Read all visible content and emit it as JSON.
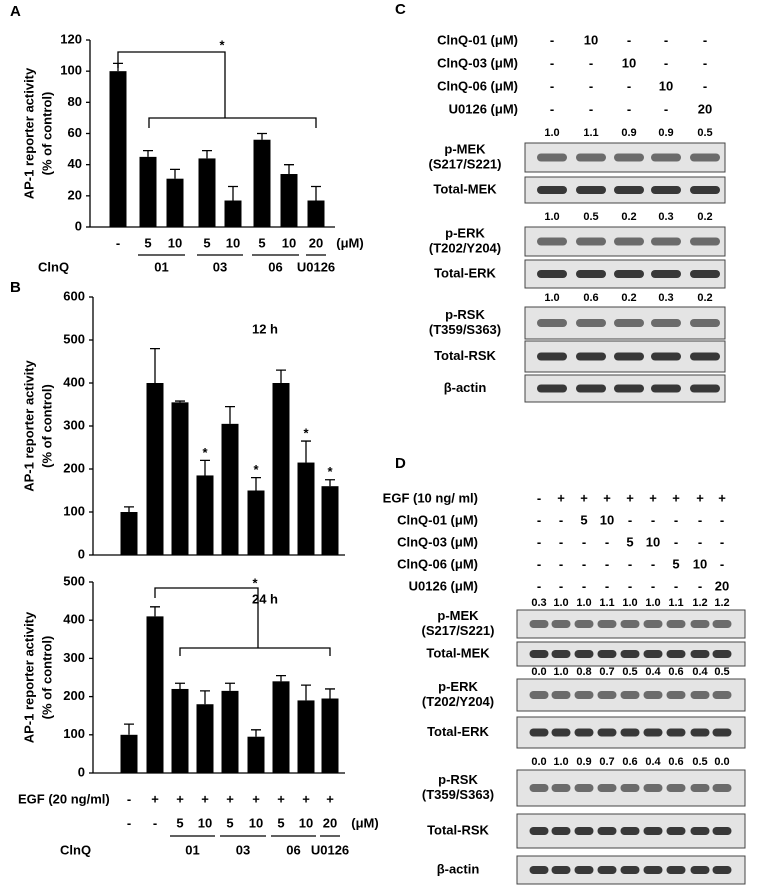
{
  "chart_data": [
    {
      "type": "bar",
      "panel": "A",
      "ylabel": [
        "AP-1 reporter activity",
        "(% of control)"
      ],
      "categories": [
        "-",
        "5",
        "10",
        "5",
        "10",
        "5",
        "10",
        "20"
      ],
      "groups": [
        null,
        "01",
        "01",
        "03",
        "03",
        "06",
        "06",
        "U0126"
      ],
      "group_title": "ClnQ",
      "unit": "(μM)",
      "values": [
        100,
        45,
        31,
        44,
        17,
        56,
        34,
        17
      ],
      "errors": [
        5,
        4,
        6,
        5,
        9,
        4,
        6,
        9
      ],
      "color": "#000000",
      "ylim": [
        0,
        120
      ],
      "yticks": [
        0,
        20,
        40,
        60,
        80,
        100,
        120
      ],
      "significance": "*"
    },
    {
      "type": "bar",
      "panel": "B",
      "note": "12 h",
      "ylabel": [
        "AP-1 reporter activity",
        "(% of control)"
      ],
      "values": [
        100,
        400,
        355,
        185,
        305,
        150,
        400,
        215,
        160
      ],
      "errors": [
        12,
        80,
        3,
        35,
        40,
        30,
        30,
        50,
        15
      ],
      "stars": [
        null,
        null,
        null,
        "*",
        null,
        "*",
        null,
        "*",
        "*"
      ],
      "color": "#000000",
      "ylim": [
        0,
        600
      ],
      "yticks": [
        0,
        100,
        200,
        300,
        400,
        500,
        600
      ]
    },
    {
      "type": "bar",
      "note": "24 h",
      "ylabel": [
        "AP-1 reporter activity",
        "(% of control)"
      ],
      "egf": {
        "label": "EGF (20 ng/ml)",
        "values": [
          "-",
          "+",
          "+",
          "+",
          "+",
          "+",
          "+",
          "+",
          "+"
        ]
      },
      "categories": [
        "-",
        "-",
        "5",
        "10",
        "5",
        "10",
        "5",
        "10",
        "20"
      ],
      "groups": [
        null,
        null,
        "01",
        "01",
        "03",
        "03",
        "06",
        "06",
        "U0126"
      ],
      "group_title": "ClnQ",
      "unit": "(μM)",
      "values": [
        100,
        410,
        220,
        180,
        215,
        95,
        240,
        190,
        195
      ],
      "errors": [
        28,
        25,
        15,
        35,
        20,
        18,
        15,
        40,
        25
      ],
      "color": "#000000",
      "ylim": [
        0,
        500
      ],
      "yticks": [
        0,
        100,
        200,
        300,
        400,
        500
      ],
      "significance": "*"
    }
  ],
  "blots": [
    {
      "panel": "C",
      "treatments": [
        {
          "label": "ClnQ-01  (μM)",
          "values": [
            "-",
            "10",
            "-",
            "-",
            "-"
          ]
        },
        {
          "label": "ClnQ-03  (μM)",
          "values": [
            "-",
            "-",
            "10",
            "-",
            "-"
          ]
        },
        {
          "label": "ClnQ-06  (μM)",
          "values": [
            "-",
            "-",
            "-",
            "10",
            "-"
          ]
        },
        {
          "label": "U0126  (μM)",
          "values": [
            "-",
            "-",
            "-",
            "-",
            "20"
          ]
        }
      ],
      "rows": [
        {
          "label": [
            "p-MEK",
            "(S217/S221)"
          ],
          "quant": [
            "1.0",
            "1.1",
            "0.9",
            "0.9",
            "0.5"
          ]
        },
        {
          "label": [
            "Total-MEK"
          ]
        },
        {
          "label": [
            "p-ERK",
            "(T202/Y204)"
          ],
          "quant": [
            "1.0",
            "0.5",
            "0.2",
            "0.3",
            "0.2"
          ]
        },
        {
          "label": [
            "Total-ERK"
          ]
        },
        {
          "label": [
            "p-RSK",
            "(T359/S363)"
          ],
          "quant": [
            "1.0",
            "0.6",
            "0.2",
            "0.3",
            "0.2"
          ]
        },
        {
          "label": [
            "Total-RSK"
          ]
        },
        {
          "label": [
            "β-actin"
          ]
        }
      ]
    },
    {
      "panel": "D",
      "treatments": [
        {
          "label": "EGF  (10 ng/ ml)",
          "values": [
            "-",
            "+",
            "+",
            "+",
            "+",
            "+",
            "+",
            "+",
            "+"
          ]
        },
        {
          "label": "ClnQ-01  (μM)",
          "values": [
            "-",
            "-",
            "5",
            "10",
            "-",
            "-",
            "-",
            "-",
            "-"
          ]
        },
        {
          "label": "ClnQ-03  (μM)",
          "values": [
            "-",
            "-",
            "-",
            "-",
            "5",
            "10",
            "-",
            "-",
            "-"
          ]
        },
        {
          "label": "ClnQ-06  (μM)",
          "values": [
            "-",
            "-",
            "-",
            "-",
            "-",
            "-",
            "5",
            "10",
            "-"
          ]
        },
        {
          "label": "U0126  (μM)",
          "values": [
            "-",
            "-",
            "-",
            "-",
            "-",
            "-",
            "-",
            "-",
            "20"
          ]
        }
      ],
      "rows": [
        {
          "label": [
            "p-MEK",
            "(S217/S221)"
          ],
          "quant": [
            "0.3",
            "1.0",
            "1.0",
            "1.1",
            "1.0",
            "1.0",
            "1.1",
            "1.2",
            "1.2"
          ]
        },
        {
          "label": [
            "Total-MEK"
          ]
        },
        {
          "label": [
            "p-ERK",
            "(T202/Y204)"
          ],
          "quant": [
            "0.0",
            "1.0",
            "0.8",
            "0.7",
            "0.5",
            "0.4",
            "0.6",
            "0.4",
            "0.5"
          ]
        },
        {
          "label": [
            "Total-ERK"
          ]
        },
        {
          "label": [
            "p-RSK",
            "(T359/S363)"
          ],
          "quant": [
            "0.0",
            "1.0",
            "0.9",
            "0.7",
            "0.6",
            "0.4",
            "0.6",
            "0.5",
            "0.0"
          ]
        },
        {
          "label": [
            "Total-RSK"
          ]
        },
        {
          "label": [
            "β-actin"
          ]
        }
      ]
    }
  ]
}
